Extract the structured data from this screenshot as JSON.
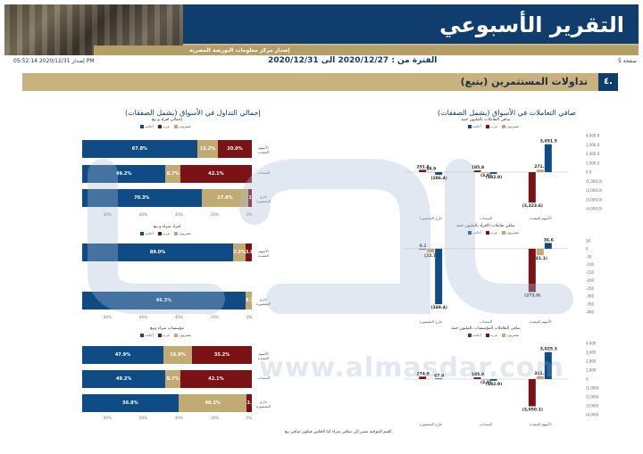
{
  "header": {
    "title": "التقرير الأسبوعي",
    "subtitle": "إصدار مركز معلومات البورصة المصرية"
  },
  "info": {
    "page": "صفحة 5",
    "period": "الفترة من : 2020/12/27 الى 2020/12/31",
    "issued": "إصدار 2020/12/31 05:52:14 PM"
  },
  "section": {
    "number": "٤.",
    "title": "تداولات المستثمرين (يتبع)"
  },
  "left_panel": {
    "title": "إجمالي التداول في الأسواق (يشمل الصفقات)"
  },
  "right_panel": {
    "title": "صافي التعاملات في الأسواق (يشمل الصفقات)"
  },
  "legends": {
    "hbar": [
      "مصريون",
      "عرب",
      "أجانب"
    ],
    "vbar": [
      "مصريون",
      "عرب",
      "أجانب"
    ]
  },
  "colors": {
    "egyptians": "#0f4c85",
    "arabs": "#c2ab73",
    "foreigners": "#7a1216",
    "navy": "#0f3d6e",
    "gold": "#c8b37e"
  },
  "chart_data": [
    {
      "type": "bar",
      "orientation": "horizontal",
      "stacked": true,
      "title": "إجمالي افراد و بيع",
      "categories": [
        "الأسهم المقيدة",
        "السندات",
        "خارج المقصورة"
      ],
      "series": [
        {
          "name": "مصريون",
          "values": [
            67.8,
            49.2,
            70.3
          ]
        },
        {
          "name": "عرب",
          "values": [
            12.2,
            8.7,
            27.8
          ]
        },
        {
          "name": "أجانب",
          "values": [
            20.0,
            42.1,
            1.9
          ]
        }
      ],
      "labels": [
        [
          "67.8%",
          "12.2%",
          "20.0%"
        ],
        [
          "49.2%",
          "8.7%",
          "42.1%"
        ],
        [
          "70.3%",
          "27.8%",
          "1.9%"
        ]
      ],
      "xticks": [
        "0%",
        "20%",
        "40%",
        "60%",
        "80%"
      ]
    },
    {
      "type": "bar",
      "orientation": "horizontal",
      "stacked": true,
      "title": "افراد شراء و بيع",
      "categories": [
        "الأسهم المقيدة",
        "خارج المقصورة"
      ],
      "series": [
        {
          "name": "مصريون",
          "values": [
            89.0,
            96.3
          ]
        },
        {
          "name": "عرب",
          "values": [
            7.2,
            3.7
          ]
        },
        {
          "name": "أجانب",
          "values": [
            3.8,
            0.0
          ]
        }
      ],
      "labels": [
        [
          "89.0%",
          "7.2%",
          "3.8%"
        ],
        [
          "96.3%",
          "3.7%",
          ""
        ]
      ],
      "xticks": [
        "0%",
        "20%",
        "40%",
        "60%",
        "80%"
      ]
    },
    {
      "type": "bar",
      "orientation": "horizontal",
      "stacked": true,
      "title": "مؤسسات شراء وبيع",
      "categories": [
        "الأسهم المقيدة",
        "السندات",
        "خارج المقصورة"
      ],
      "series": [
        {
          "name": "مصريون",
          "values": [
            47.9,
            49.2,
            56.8
          ]
        },
        {
          "name": "عرب",
          "values": [
            16.9,
            8.7,
            40.3
          ]
        },
        {
          "name": "أجانب",
          "values": [
            35.2,
            42.1,
            2.9
          ]
        }
      ],
      "labels": [
        [
          "47.9%",
          "16.9%",
          "35.2%"
        ],
        [
          "49.2%",
          "8.7%",
          "42.1%"
        ],
        [
          "56.8%",
          "40.3%",
          "2.9%"
        ]
      ],
      "xticks": [
        "0%",
        "20%",
        "40%",
        "60%",
        "80%"
      ]
    },
    {
      "type": "bar",
      "orientation": "vertical",
      "title": "صافي التعاملات بالمليون جنيه",
      "categories": [
        "الأسهم المقيدة",
        "السندات",
        "خارج المقصورة"
      ],
      "series": [
        {
          "name": "مصريون",
          "values": [
            3051.5,
            -182.9,
            -286.4
          ]
        },
        {
          "name": "عرب",
          "values": [
            271.1,
            -3.0,
            34.9
          ]
        },
        {
          "name": "أجانب",
          "values": [
            -3323.6,
            185.9,
            251.5
          ]
        }
      ],
      "labels": [
        [
          "3,051.5",
          "271.1",
          "(3,323.6)"
        ],
        [
          "(182.9)",
          "(3.0)",
          "185.9"
        ],
        [
          "(286.4)",
          "34.9",
          "251.5"
        ]
      ],
      "yticks": [
        "4,000.0",
        "3,000.0",
        "2,000.0",
        "1,000.0",
        "0.0",
        "(1,000.0)",
        "(2,000.0)",
        "(3,000.0)",
        "(4,000.0)"
      ],
      "ylim": [
        -4000,
        4000
      ]
    },
    {
      "type": "bar",
      "orientation": "vertical",
      "title": "صافي تعاملات الافراد بالمليون جنيه",
      "categories": [
        "الأسهم المقيدة",
        "السندات",
        "خارج المقصورة"
      ],
      "series": [
        {
          "name": "مصريون",
          "values": [
            36.6,
            0,
            -349.4
          ]
        },
        {
          "name": "عرب",
          "values": [
            -41.1,
            0,
            -22.7
          ]
        },
        {
          "name": "أجانب",
          "values": [
            -272.9,
            0,
            0.1
          ]
        }
      ],
      "labels": [
        [
          "36.6",
          "(41.1)",
          "(272.9)"
        ],
        [
          "",
          "",
          ""
        ],
        [
          "(349.4)",
          "(22.7)",
          "0.1"
        ]
      ],
      "yticks": [
        "50",
        "0",
        "-50",
        "-100",
        "-150",
        "-200",
        "-250",
        "-300",
        "-350",
        "-400"
      ],
      "ylim": [
        -400,
        50
      ]
    },
    {
      "type": "bar",
      "orientation": "vertical",
      "title": "صافي التعاملات المؤسسات بالمليون جنيه",
      "categories": [
        "الأسهم المقيدة",
        "السندات",
        "خارج المقصورة"
      ],
      "series": [
        {
          "name": "مصريون",
          "values": [
            3025.3,
            -182.9,
            67.9
          ]
        },
        {
          "name": "عرب",
          "values": [
            312.2,
            -3.0,
            0
          ]
        },
        {
          "name": "أجانب",
          "values": [
            -3050.1,
            185.9,
            274.0
          ]
        }
      ],
      "labels": [
        [
          "3,025.3",
          "312.2",
          "(3,050.1)"
        ],
        [
          "(182.9)",
          "(3.0)",
          "185.9"
        ],
        [
          "67.9",
          "",
          "274.0"
        ]
      ],
      "yticks": [
        "4,000",
        "3,000",
        "2,000",
        "1,000",
        "0",
        "(1,000)",
        "(2,000)",
        "(3,000)",
        "(4,000)"
      ],
      "ylim": [
        -4000,
        4000
      ]
    }
  ],
  "footnote": "القيم الموجبة تشير إلى صافي شراء أما العكس فيكون صافي بيع.",
  "watermark": {
    "url": "www.almasdar.com"
  }
}
